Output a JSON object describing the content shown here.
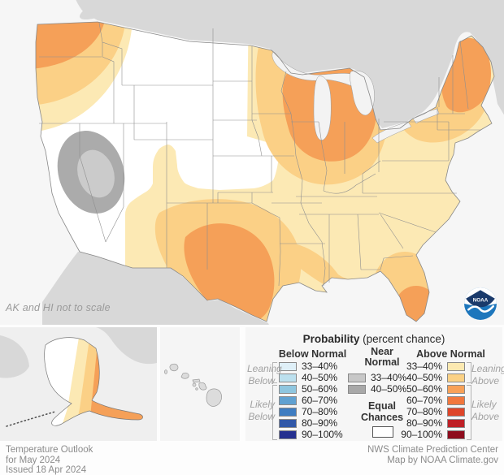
{
  "map": {
    "note": "AK and HI not to scale",
    "logo": "NOAA",
    "regions": [
      {
        "area": "Pacific Northwest (WA, OR)",
        "category": "Above Normal 50-60% core with 40-50% and 33-40% fringes"
      },
      {
        "area": "Four Corners / NM-AZ border",
        "category": "Near Normal 40-50% ring with 33-40% center"
      },
      {
        "area": "South Texas & Gulf Coast",
        "category": "Above Normal 50-60% core, 40-50% ring, 33-40% fringe"
      },
      {
        "area": "Upper Midwest / Great Lakes (WI, MI, IN, OH)",
        "category": "Above Normal 50-60% core with 40-50% ring"
      },
      {
        "area": "Northeast (ME, NH, VT)",
        "category": "Above Normal 50-60% core, NY/S New England 40-50%"
      },
      {
        "area": "Florida peninsula",
        "category": "Above Normal 40-50%, south tip 50-60%"
      },
      {
        "area": "Central Plains, Great Basin, California",
        "category": "Equal Chances (white)"
      },
      {
        "area": "Eastern Alaska",
        "category": "Above Normal gradient, panhandle 50-60%"
      },
      {
        "area": "Southeast / Mid-Atlantic",
        "category": "Above Normal 33-40%"
      }
    ]
  },
  "legend": {
    "title_bold": "Probability",
    "title_rest": " (percent chance)",
    "below": {
      "header": "Below Normal",
      "ranges": [
        "33–40%",
        "40–50%",
        "50–60%",
        "60–70%",
        "70–80%",
        "80–90%",
        "90–100%"
      ],
      "leaning": [
        "Leaning",
        "Below"
      ],
      "likely": [
        "Likely",
        "Below"
      ]
    },
    "near": {
      "header_line1": "Near",
      "header_line2": "Normal",
      "ranges": [
        "33–40%",
        "40–50%"
      ],
      "equal_line1": "Equal",
      "equal_line2": "Chances"
    },
    "above": {
      "header": "Above Normal",
      "ranges": [
        "33–40%",
        "40–50%",
        "50–60%",
        "60–70%",
        "70–80%",
        "80–90%",
        "90–100%"
      ],
      "leaning": [
        "Leaning",
        "Above"
      ],
      "likely": [
        "Likely",
        "Above"
      ]
    }
  },
  "footer": {
    "left": [
      "Temperature Outlook",
      "for May 2024",
      "Issued 18 Apr 2024"
    ],
    "right": [
      "NWS Climate Prediction Center",
      "Map by NOAA Climate.gov"
    ]
  },
  "colors": {
    "below_swatches": [
      "#DFF0F8",
      "#BCE0EE",
      "#8FC6DF",
      "#60A1D1",
      "#3F7DC1",
      "#3158A8",
      "#25308F"
    ],
    "near_swatches": [
      "#C7C7C7",
      "#A8A8A8"
    ],
    "above_swatches": [
      "#FCE9B1",
      "#FBD185",
      "#F8A158",
      "#F1773D",
      "#DE4529",
      "#BE2026",
      "#8E0C1D"
    ],
    "equal_chances": "#FFFFFF",
    "map_fills": {
      "ocean": "#F6F6F6",
      "land-na": "#D8D8D8",
      "conus": "#FFFFFF",
      "cream": "#FCE9B4",
      "lt": "#FBD086",
      "core": "#F5A058",
      "gray-outer": "#ABABAB",
      "gray-inner": "#CBCBCB",
      "lake": "#F3F3F3",
      "noaa-navy": "#1A3A6B",
      "noaa-blue": "#1D76BC"
    }
  }
}
